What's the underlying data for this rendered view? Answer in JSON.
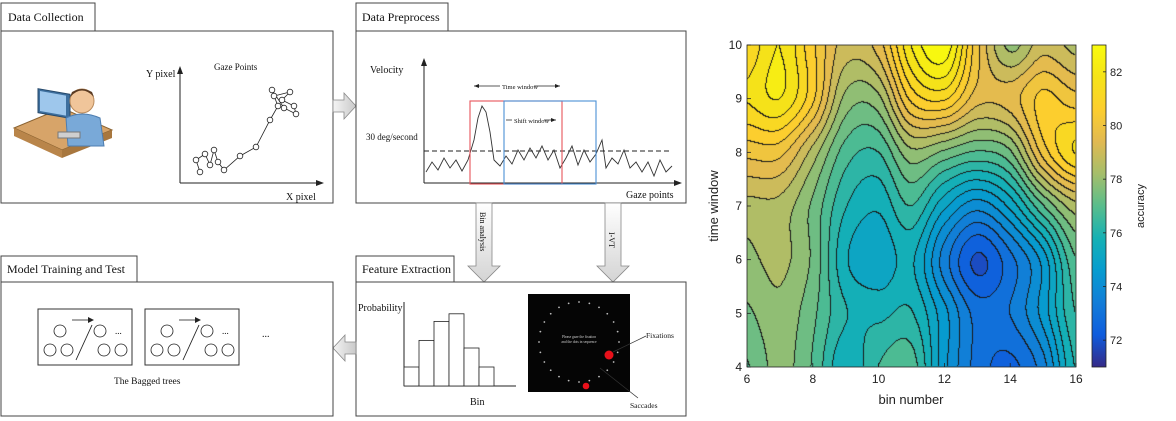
{
  "panels": {
    "collection": {
      "title": "Data Collection",
      "ylabel": "Y pixel",
      "xlabel": "X pixel",
      "plot_title": "Gaze Points"
    },
    "preprocess": {
      "title": "Data Preprocess",
      "ylabel": "Velocity",
      "threshold": "30 deg/second",
      "time_window": "Time window",
      "shift_window": "Shift window",
      "xlabel": "Gaze points"
    },
    "features": {
      "title": "Feature Extraction",
      "ylabel": "Probability",
      "xlabel": "Bin",
      "fixations": "Fixations",
      "saccades": "Saccades",
      "screen_text_1": "Please gaze the fixation",
      "screen_text_2": "and the dots in sequence",
      "hist_values": [
        0.25,
        0.6,
        0.85,
        0.95,
        0.5,
        0.25
      ]
    },
    "training": {
      "title": "Model Training and Test",
      "ensemble_label": "The Bagged trees",
      "ellipsis": "..."
    }
  },
  "arrows": {
    "bin_analysis": "Bin analysis",
    "ivt": "I-VT"
  },
  "chart_data": {
    "type": "heatmap",
    "subtype": "filled-contour",
    "xlabel": "bin number",
    "ylabel": "time window",
    "colorbar_label": "accuracy",
    "xlim": [
      6,
      16
    ],
    "ylim": [
      4,
      10
    ],
    "x_ticks": [
      6,
      8,
      10,
      12,
      14,
      16
    ],
    "y_ticks": [
      4,
      5,
      6,
      7,
      8,
      9,
      10
    ],
    "colorbar_ticks": [
      72,
      74,
      76,
      78,
      80,
      82
    ],
    "clim": [
      71,
      83
    ],
    "colormap": "parula",
    "x": [
      6,
      7,
      8,
      9,
      10,
      11,
      12,
      13,
      14,
      15,
      16
    ],
    "y": [
      4,
      5,
      6,
      7,
      8,
      9,
      10
    ],
    "z": [
      [
        77.0,
        77.8,
        77.0,
        75.5,
        76.5,
        76.8,
        74.5,
        73.0,
        72.5,
        73.5,
        76.0
      ],
      [
        77.5,
        78.0,
        77.2,
        76.0,
        75.8,
        76.0,
        74.5,
        73.0,
        73.2,
        74.5,
        76.5
      ],
      [
        78.0,
        78.3,
        77.5,
        75.5,
        75.0,
        75.5,
        73.5,
        72.0,
        73.0,
        74.5,
        77.0
      ],
      [
        78.5,
        78.5,
        77.5,
        76.0,
        75.5,
        76.5,
        75.0,
        74.0,
        75.0,
        77.0,
        78.5
      ],
      [
        80.0,
        80.0,
        78.5,
        76.8,
        76.5,
        78.0,
        77.5,
        77.0,
        77.5,
        80.0,
        81.5
      ],
      [
        81.5,
        82.0,
        80.5,
        78.0,
        78.0,
        80.5,
        81.0,
        79.5,
        79.5,
        80.5,
        80.0
      ],
      [
        81.0,
        82.0,
        80.5,
        79.0,
        79.5,
        82.0,
        83.0,
        80.0,
        78.0,
        79.0,
        78.5
      ]
    ]
  }
}
